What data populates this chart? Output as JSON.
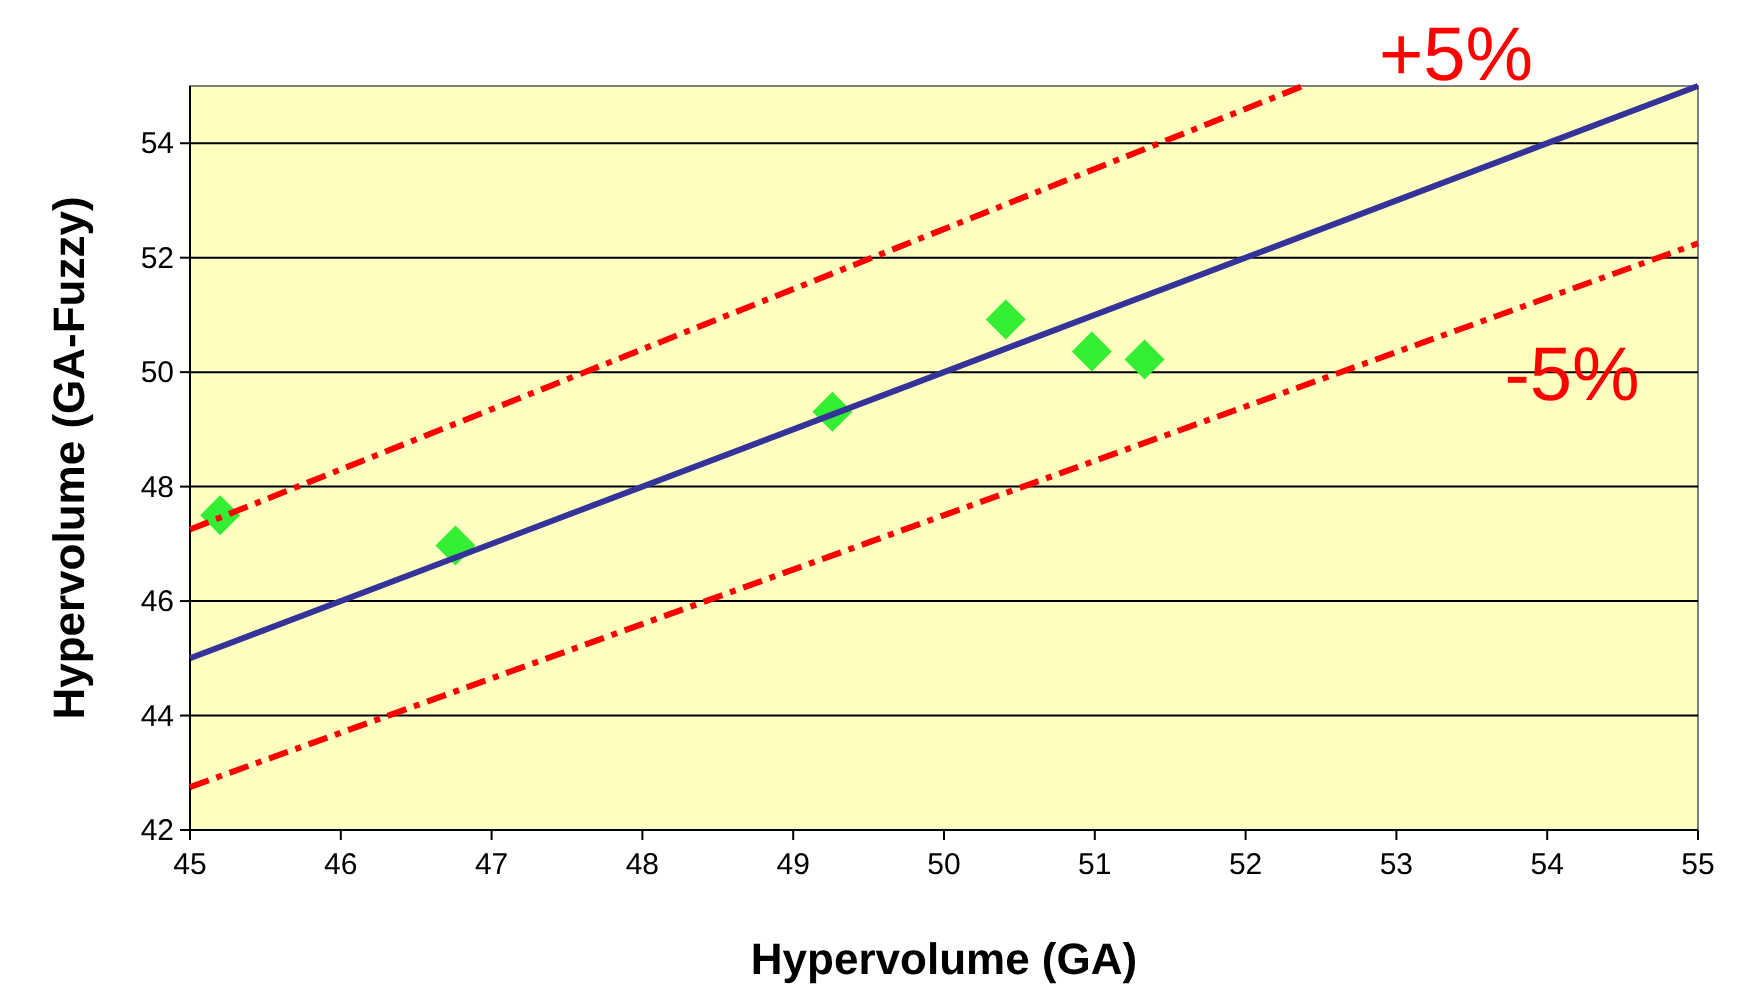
{
  "chart_data": {
    "type": "scatter",
    "xlabel": "Hypervolume (GA)",
    "ylabel": "Hypervolume (GA-Fuzzy)",
    "xlim": [
      45,
      55
    ],
    "ylim": [
      42,
      55
    ],
    "xticks": [
      45,
      46,
      47,
      48,
      49,
      50,
      51,
      52,
      53,
      54,
      55
    ],
    "yticks": [
      42,
      44,
      46,
      48,
      50,
      52,
      54
    ],
    "grid": "y",
    "series": [
      {
        "marker": "diamond",
        "color": "#33ee33",
        "x": [
          45.2,
          46.76,
          49.26,
          50.41,
          50.98,
          51.33
        ],
        "values": [
          47.5,
          46.97,
          49.31,
          50.92,
          50.36,
          50.22
        ]
      },
      {
        "type": "line",
        "color": "#333399",
        "x": [
          45,
          55
        ],
        "values": [
          45,
          55
        ],
        "line_style": "solid"
      },
      {
        "type": "line",
        "color": "#ff0000",
        "x": [
          45,
          52.38
        ],
        "values": [
          47.25,
          55
        ],
        "line_style": "dashed"
      },
      {
        "type": "line",
        "color": "#ff0000",
        "x": [
          45,
          55
        ],
        "values": [
          42.75,
          52.25
        ],
        "line_style": "dashed"
      }
    ],
    "annotations": [
      "+5%",
      "-5%"
    ]
  }
}
